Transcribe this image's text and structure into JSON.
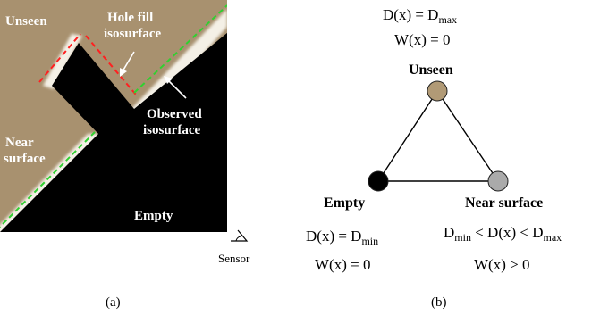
{
  "panel_a": {
    "labels": {
      "unseen": "Unseen",
      "hole_fill_1": "Hole fill",
      "hole_fill_2": "isosurface",
      "observed_1": "Observed",
      "observed_2": "isosurface",
      "near_1": "Near",
      "near_2": "surface",
      "empty": "Empty"
    },
    "sensor_label": "Sensor",
    "caption": "(a)",
    "colors": {
      "unseen": "#a8916f",
      "empty": "#000000",
      "near": "#ffffff",
      "hole_dash": "#ff2020",
      "observed_dash": "#30d030"
    }
  },
  "panel_b": {
    "caption": "(b)",
    "top_eq": {
      "lhs": "D(x) = D",
      "sub": "max"
    },
    "top_w": "W(x) = 0",
    "nodes": {
      "unseen": {
        "label": "Unseen",
        "color": "#b19a76"
      },
      "empty": {
        "label": "Empty",
        "color": "#000000"
      },
      "near": {
        "label": "Near surface",
        "color": "#aaaaaa"
      }
    },
    "empty_eq": {
      "lhs": "D(x) = D",
      "sub": "min"
    },
    "empty_w": "W(x) = 0",
    "near_eq": {
      "d1": "D",
      "sub1": "min",
      "mid": " < D(x) < D",
      "sub2": "max"
    },
    "near_w": "W(x) > 0"
  }
}
